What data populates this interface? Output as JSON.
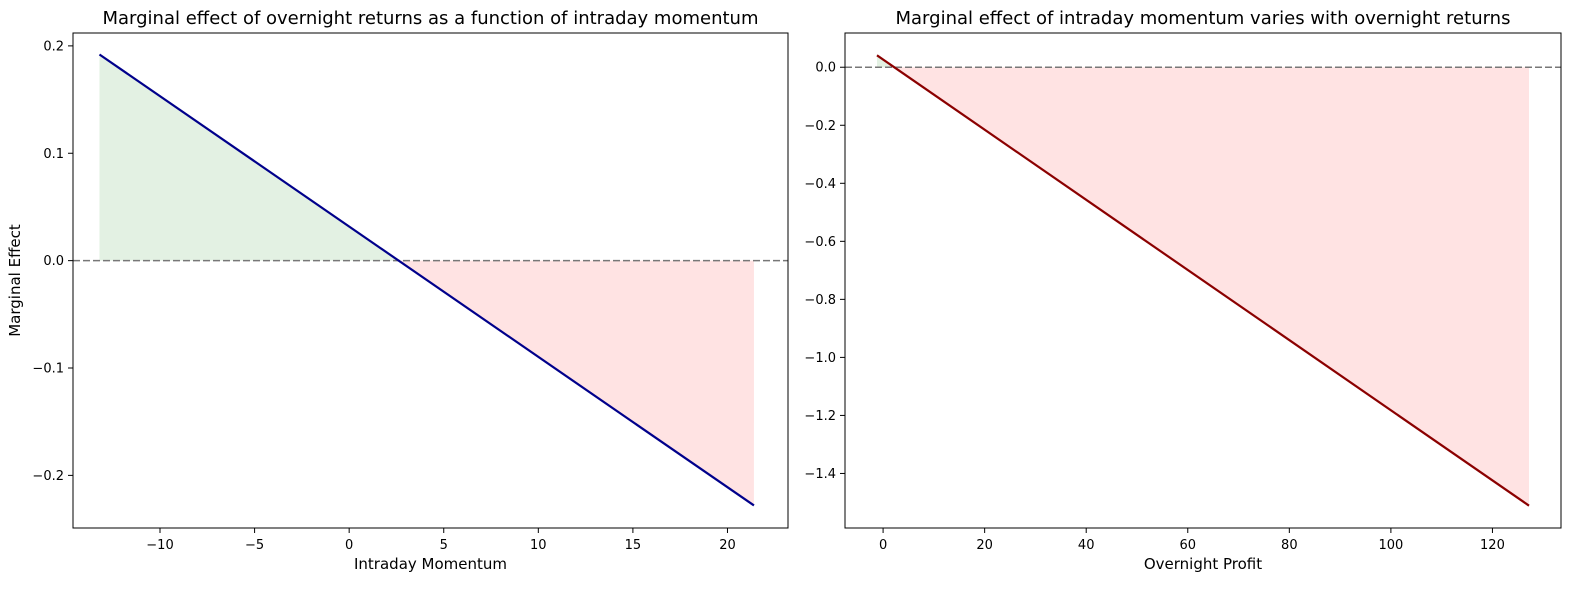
{
  "chart_data": [
    {
      "type": "line",
      "title": "Marginal effect of overnight returns as a function of intraday momentum",
      "xlabel": "Intraday Momentum",
      "ylabel": "Marginal Effect",
      "xlim": [
        -14.6,
        23.2
      ],
      "ylim": [
        -0.249,
        0.212
      ],
      "xticks": [
        -10,
        -5,
        0,
        5,
        10,
        15,
        20
      ],
      "xtick_labels": [
        "−10",
        "−5",
        "0",
        "5",
        "10",
        "15",
        "20"
      ],
      "yticks": [
        -0.2,
        -0.1,
        0.0,
        0.1,
        0.2
      ],
      "ytick_labels": [
        "−0.2",
        "−0.1",
        "0.0",
        "0.1",
        "0.2"
      ],
      "series": [
        {
          "x": [
            -13.2,
            21.4
          ],
          "y": [
            0.192,
            -0.228
          ],
          "color": "#00008b"
        }
      ],
      "reference_line": {
        "y": 0,
        "style": "dashed",
        "color": "#777777"
      },
      "fill": {
        "positive_color": "#008000",
        "negative_color": "#ff0000",
        "opacity": 0.11
      },
      "grid": false
    },
    {
      "type": "line",
      "title": "Marginal effect of intraday momentum varies with overnight returns",
      "xlabel": "Overnight Profit",
      "ylabel": "",
      "xlim": [
        -7.5,
        133.5
      ],
      "ylim": [
        -1.588,
        0.118
      ],
      "xticks": [
        0,
        20,
        40,
        60,
        80,
        100,
        120
      ],
      "xtick_labels": [
        "0",
        "20",
        "40",
        "60",
        "80",
        "100",
        "120"
      ],
      "yticks": [
        0.0,
        -0.2,
        -0.4,
        -0.6,
        -0.8,
        -1.0,
        -1.2,
        -1.4
      ],
      "ytick_labels": [
        "0.0",
        "−0.2",
        "−0.4",
        "−0.6",
        "−0.8",
        "−1.0",
        "−1.2",
        "−1.4"
      ],
      "series": [
        {
          "x": [
            -1.2,
            127.2
          ],
          "y": [
            0.041,
            -1.511
          ],
          "color": "#8b0000"
        }
      ],
      "reference_line": {
        "y": 0,
        "style": "dashed",
        "color": "#777777"
      },
      "fill": {
        "positive_color": "#008000",
        "negative_color": "#ff0000",
        "opacity": 0.11
      },
      "grid": false
    }
  ]
}
